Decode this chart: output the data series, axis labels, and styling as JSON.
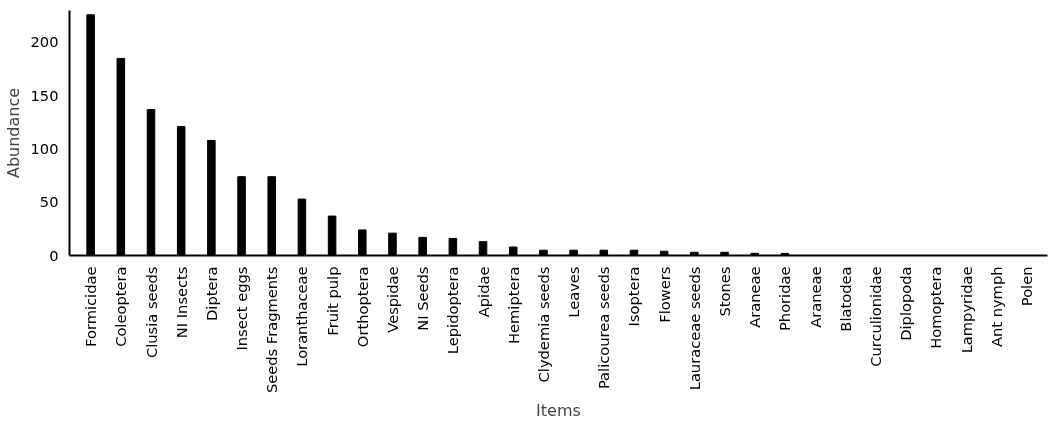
{
  "chart_data": {
    "type": "bar",
    "xlabel": "Items",
    "ylabel": "Abundance",
    "categories": [
      "Formicidae",
      "Coleoptera",
      "Clusia seeds",
      "NI Insects",
      "Diptera",
      "Insect eggs",
      "Seeds Fragments",
      "Loranthaceae",
      "Fruit pulp",
      "Orthoptera",
      "Vespidae",
      "NI Seeds",
      "Lepidoptera",
      "Apidae",
      "Hemiptera",
      "Clydemia seeds",
      "Leaves",
      "Palicourea seeds",
      "Isoptera",
      "Flowers",
      "Lauraceae seeds",
      "Stones",
      "Araneae",
      "Phoridae",
      "Araneae",
      "Blatodea",
      "Curculionidae",
      "Diplopoda",
      "Homoptera",
      "Lampyridae",
      "Ant nymph",
      "Polen"
    ],
    "values": [
      226,
      185,
      137,
      121,
      108,
      74,
      74,
      53,
      37,
      24,
      21,
      17,
      16,
      13,
      8,
      5,
      5,
      5,
      5,
      4,
      3,
      3,
      2,
      2,
      0,
      0,
      0,
      0,
      0,
      0,
      0,
      0
    ],
    "color": "#000000",
    "ylim": [
      0,
      230
    ],
    "yticks": [
      0,
      50,
      100,
      150,
      200
    ],
    "grid": false
  }
}
